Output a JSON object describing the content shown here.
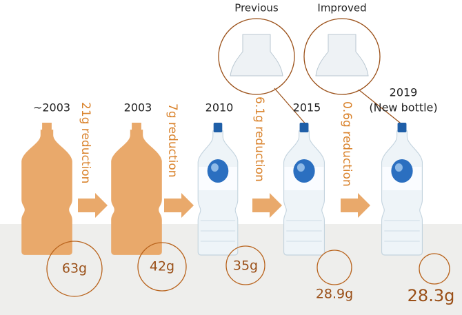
{
  "stages": [
    {
      "year": "~2003",
      "weight": "63g"
    },
    {
      "year": "2003",
      "weight": "42g"
    },
    {
      "year": "2010",
      "weight": "35g"
    },
    {
      "year": "2015",
      "weight": "28.9g"
    },
    {
      "year": "2019",
      "note": "(New bottle)",
      "weight": "28.3g"
    }
  ],
  "reductions": [
    "21g reduction",
    "7g reduction",
    "6.1g reduction",
    "0.6g reduction"
  ],
  "closeups": {
    "previous": "Previous",
    "improved": "Improved"
  }
}
